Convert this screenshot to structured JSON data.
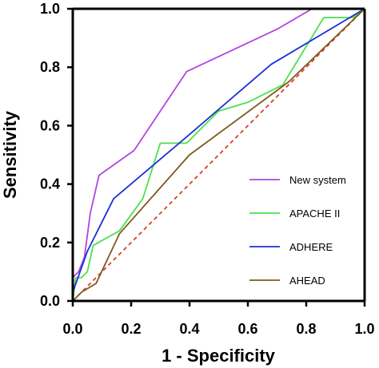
{
  "chart_data": {
    "type": "line",
    "title": "",
    "xlabel": "1 - Specificity",
    "ylabel": "Sensitivity",
    "xlim": [
      0,
      1
    ],
    "ylim": [
      0,
      1
    ],
    "xticks": [
      "0.0",
      "0.2",
      "0.4",
      "0.6",
      "0.8",
      "1.0"
    ],
    "yticks": [
      "0.0",
      "0.2",
      "0.4",
      "0.6",
      "0.8",
      "1.0"
    ],
    "grid": false,
    "legend_position": "lower-right",
    "reference_line": {
      "style": "dashed",
      "color": "#e03a2f",
      "points": [
        [
          0,
          0
        ],
        [
          1,
          1
        ]
      ]
    },
    "series": [
      {
        "name": "New system",
        "color": "#b246e0",
        "points": [
          [
            0,
            0
          ],
          [
            0,
            0.08
          ],
          [
            0.02,
            0.1
          ],
          [
            0.04,
            0.15
          ],
          [
            0.06,
            0.3
          ],
          [
            0.09,
            0.43
          ],
          [
            0.21,
            0.515
          ],
          [
            0.39,
            0.785
          ],
          [
            0.7,
            0.93
          ],
          [
            0.82,
            1.0
          ],
          [
            1.0,
            1.0
          ]
        ]
      },
      {
        "name": "APACHE II",
        "color": "#4ce04c",
        "points": [
          [
            0,
            0
          ],
          [
            0.01,
            0.08
          ],
          [
            0.03,
            0.08
          ],
          [
            0.05,
            0.1
          ],
          [
            0.07,
            0.19
          ],
          [
            0.16,
            0.24
          ],
          [
            0.24,
            0.35
          ],
          [
            0.3,
            0.54
          ],
          [
            0.39,
            0.54
          ],
          [
            0.5,
            0.65
          ],
          [
            0.6,
            0.68
          ],
          [
            0.72,
            0.74
          ],
          [
            0.86,
            0.97
          ],
          [
            0.96,
            0.97
          ],
          [
            1.0,
            1.0
          ]
        ]
      },
      {
        "name": "ADHERE",
        "color": "#1c2fd6",
        "points": [
          [
            0,
            0
          ],
          [
            0,
            0.03
          ],
          [
            0.05,
            0.17
          ],
          [
            0.14,
            0.35
          ],
          [
            0.4,
            0.57
          ],
          [
            0.68,
            0.81
          ],
          [
            1.0,
            1.0
          ]
        ]
      },
      {
        "name": "AHEAD",
        "color": "#7b5a1d",
        "points": [
          [
            0,
            0
          ],
          [
            0.01,
            0.01
          ],
          [
            0.03,
            0.03
          ],
          [
            0.08,
            0.06
          ],
          [
            0.16,
            0.23
          ],
          [
            0.4,
            0.5
          ],
          [
            0.74,
            0.75
          ],
          [
            1.0,
            1.0
          ]
        ]
      }
    ]
  }
}
